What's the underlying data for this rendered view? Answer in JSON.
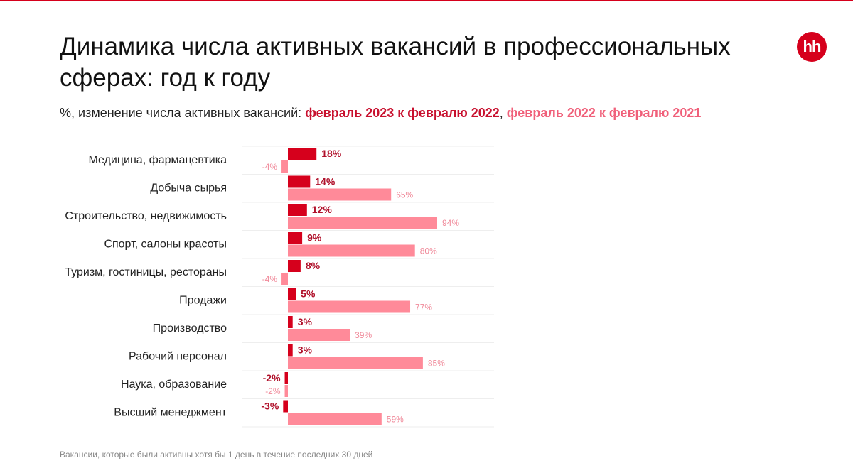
{
  "title": "Динамика числа активных вакансий в профессиональных сферах: год к году",
  "subtitle": {
    "prefix": "%, изменение числа активных вакансий: ",
    "series1": "февраль 2023 к февралю 2022",
    "sep": ", ",
    "series2": "февраль 2022 к февралю 2021"
  },
  "logo": "hh",
  "footnote": "Вакансии, которые были активны хотя бы 1 день в течение последних 30 дней",
  "colors": {
    "series1": "#d6001c",
    "series2": "#ff8a99",
    "grid": "#eeeeee"
  },
  "chart_data": {
    "type": "bar",
    "orientation": "horizontal",
    "categories": [
      "Медицина, фармацевтика",
      "Добыча сырья",
      "Строительство, недвижимость",
      "Спорт, салоны красоты",
      "Туризм, гостиницы, рестораны",
      "Продажи",
      "Производство",
      "Рабочий персонал",
      "Наука, образование",
      "Высший менеджмент"
    ],
    "series": [
      {
        "name": "февраль 2023 к февралю 2022",
        "values": [
          18,
          14,
          12,
          9,
          8,
          5,
          3,
          3,
          -2,
          -3
        ]
      },
      {
        "name": "февраль 2022 к февралю 2021",
        "values": [
          -4,
          65,
          94,
          80,
          -4,
          77,
          39,
          85,
          -2,
          59
        ]
      }
    ],
    "unit": "%"
  }
}
